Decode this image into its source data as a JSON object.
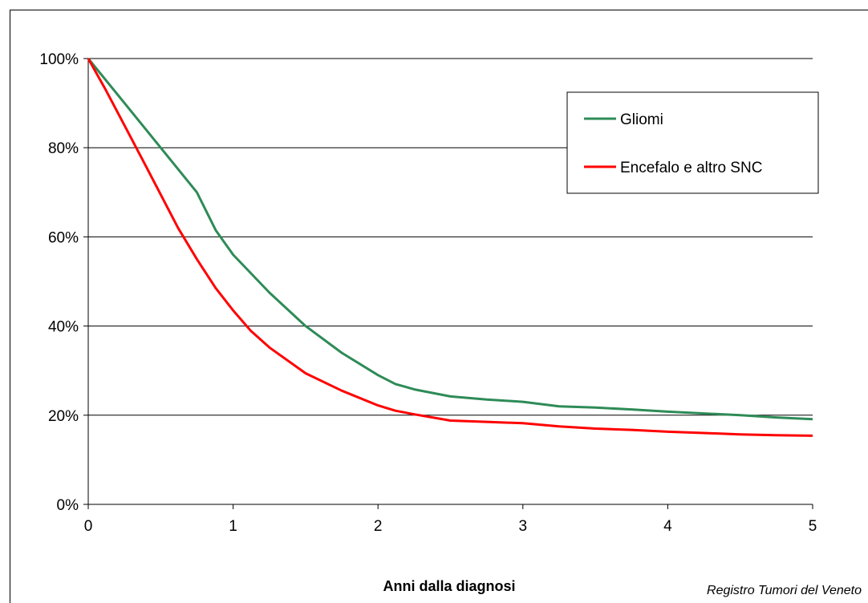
{
  "chart_data": {
    "type": "line",
    "title": "",
    "xlabel": "Anni dalla diagnosi",
    "ylabel": "",
    "source_note": "Registro Tumori del Veneto",
    "xlim": [
      0,
      5
    ],
    "ylim": [
      0,
      100
    ],
    "x_ticks": [
      "0",
      "1",
      "2",
      "3",
      "4",
      "5"
    ],
    "y_ticks": [
      "0%",
      "20%",
      "40%",
      "60%",
      "80%",
      "100%"
    ],
    "grid": "horizontal",
    "legend_position": "top-right",
    "series": [
      {
        "name": "Gliomi",
        "color": "#2e8b57",
        "points": [
          [
            0,
            100
          ],
          [
            0.25,
            90
          ],
          [
            0.5,
            80
          ],
          [
            0.75,
            70
          ],
          [
            0.88,
            61.5
          ],
          [
            1.0,
            56
          ],
          [
            1.25,
            47.5
          ],
          [
            1.5,
            40
          ],
          [
            1.75,
            34
          ],
          [
            2.0,
            29
          ],
          [
            2.12,
            27
          ],
          [
            2.25,
            25.8
          ],
          [
            2.5,
            24.2
          ],
          [
            2.75,
            23.5
          ],
          [
            3.0,
            23
          ],
          [
            3.25,
            22
          ],
          [
            3.5,
            21.7
          ],
          [
            3.75,
            21.3
          ],
          [
            4.0,
            20.8
          ],
          [
            4.25,
            20.4
          ],
          [
            4.5,
            20
          ],
          [
            4.75,
            19.5
          ],
          [
            5.0,
            19.1
          ]
        ]
      },
      {
        "name": "Encefalo e altro SNC",
        "color": "#ff0000",
        "points": [
          [
            0,
            100
          ],
          [
            0.12,
            93
          ],
          [
            0.25,
            85
          ],
          [
            0.38,
            77
          ],
          [
            0.5,
            69.5
          ],
          [
            0.62,
            62
          ],
          [
            0.75,
            55
          ],
          [
            0.88,
            48.5
          ],
          [
            1.0,
            43.5
          ],
          [
            1.12,
            39
          ],
          [
            1.25,
            35.2
          ],
          [
            1.5,
            29.4
          ],
          [
            1.75,
            25.5
          ],
          [
            2.0,
            22.2
          ],
          [
            2.12,
            21
          ],
          [
            2.25,
            20.2
          ],
          [
            2.5,
            18.8
          ],
          [
            2.75,
            18.5
          ],
          [
            3.0,
            18.2
          ],
          [
            3.25,
            17.5
          ],
          [
            3.5,
            17
          ],
          [
            3.75,
            16.7
          ],
          [
            4.0,
            16.3
          ],
          [
            4.25,
            16
          ],
          [
            4.5,
            15.7
          ],
          [
            4.75,
            15.5
          ],
          [
            5.0,
            15.4
          ]
        ]
      }
    ]
  }
}
